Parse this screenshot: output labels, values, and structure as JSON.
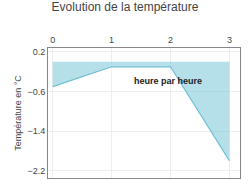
{
  "chart_data": {
    "type": "area",
    "title": "Evolution de la température",
    "ylabel": "Température en °C",
    "x": [
      0,
      1,
      2,
      3
    ],
    "values": [
      -0.5,
      -0.1,
      -0.1,
      -2.0
    ],
    "color": "#6bbfd4",
    "xlim": [
      -0.08,
      3.18
    ],
    "xticks": [
      0,
      1,
      2,
      3
    ],
    "ylim": [
      -2.35,
      0.28
    ],
    "yticks": [
      0.2,
      -0.6,
      -1.4,
      -2.2
    ],
    "annotations": [
      {
        "text": "heure par heure",
        "x": 1.35,
        "y": -0.38
      }
    ],
    "grid": true
  }
}
